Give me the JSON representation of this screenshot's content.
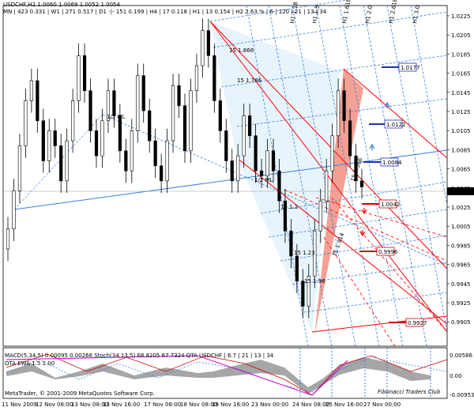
{
  "header": {
    "line1": "USDCHF,H2  1.0060 1.0069 1.0052 1.0054",
    "line2": "MN | 423  0.331 | W1 | 271  0.517 | D1 -|- 151  0.199 | H4 | 17  0.118 | H1 | 13  0.154 | H2  2.63 % | 6 | 120 | 21 | 13 | 34"
  },
  "price_axis": {
    "labels": [
      "1.0225",
      "1.0205",
      "1.0185",
      "1.0165",
      "1.0145",
      "1.0125",
      "1.0105",
      "1.0085",
      "1.0065",
      "1.0045",
      "1.0025",
      "1.0005",
      "0.9985",
      "0.9965",
      "0.9945",
      "0.9925",
      "0.9905"
    ],
    "current_price": "1.0054"
  },
  "time_axis": {
    "labels": [
      "11 Nov 2009",
      "12 Nov 08:00",
      "13 Nov 08:00",
      "13 Nov 16:00",
      "17 Nov 08:00",
      "18 Nov 08:00",
      "19 Nov 16:00",
      "23 Nov 00:00",
      "24 Nov 08:00",
      "25 Nov 16:00",
      "27 Nov 00:00"
    ]
  },
  "price_tags": {
    "blue": [
      "1.0177",
      "1.0122",
      "1.0084"
    ],
    "red": [
      "1.0042",
      "0.9996",
      "0.9927"
    ]
  },
  "annotations": {
    "half_ml": "1/2 ML",
    "ml": "1/2 ML",
    "fib_blue": [
      "15 1.866",
      "15 1.786",
      "15 1.2",
      "15 1.23",
      "15 1.96"
    ],
    "fib_red": [
      "15 1.366",
      "15 1.914"
    ],
    "top_labels": [
      "H1 1.18",
      "H1 1.5",
      "H1 1.618",
      "H1 2.0",
      "H1 2.618",
      "H1 3.0"
    ],
    "bottom_labels": [
      "LL 1.236",
      "HL 1.5",
      "HL 1.618",
      "LL 1.0",
      "LL 2.618",
      "LL 1.382",
      "HL 1.5",
      "LL 1.0"
    ]
  },
  "indicator": {
    "label": "MACD(5,34,5)  0.00095 0.00266  Stoch(34,13,5)  68.8205 67.7324  QTA USDCHF | 6.7 | 21 | 13 | 34",
    "label2": "OTA EWA 1.5 1.00",
    "axis": [
      "0.00586",
      "0.00",
      "-0.00953"
    ]
  },
  "footer": {
    "copyright": "MetaTrader, © 2001-2009 MetaQuotes Software Corp.",
    "brand": "Fibonacci Traders Club"
  },
  "chart_data": {
    "type": "candlestick",
    "ylim": [
      0.9895,
      1.0235
    ],
    "current_price": 1.0054,
    "closes": [
      1.0012,
      1.005,
      1.0095,
      1.014,
      1.016,
      1.012,
      1.008,
      1.011,
      1.0095,
      1.006,
      1.01,
      1.014,
      1.0185,
      1.015,
      1.011,
      1.0085,
      1.012,
      1.015,
      1.0125,
      1.009,
      1.007,
      1.011,
      1.0165,
      1.013,
      1.01,
      1.0075,
      1.006,
      1.01,
      1.0155,
      1.0135,
      1.009,
      1.015,
      1.0175,
      1.021,
      1.0185,
      1.014,
      1.011,
      1.008,
      1.006,
      1.0085,
      1.0125,
      1.0105,
      1.007,
      1.0065,
      1.009,
      1.007,
      1.004,
      1.001,
      0.9985,
      0.996,
      0.9935,
      0.9965,
      1.001,
      1.004,
      1.007,
      1.0105,
      1.015,
      1.012,
      1.0085,
      1.006,
      1.0054
    ]
  },
  "colors": {
    "red": "#ff0000",
    "blue": "#3b7fe0",
    "salmon": "#f08070",
    "fan_fill": "#e6f3fb"
  }
}
